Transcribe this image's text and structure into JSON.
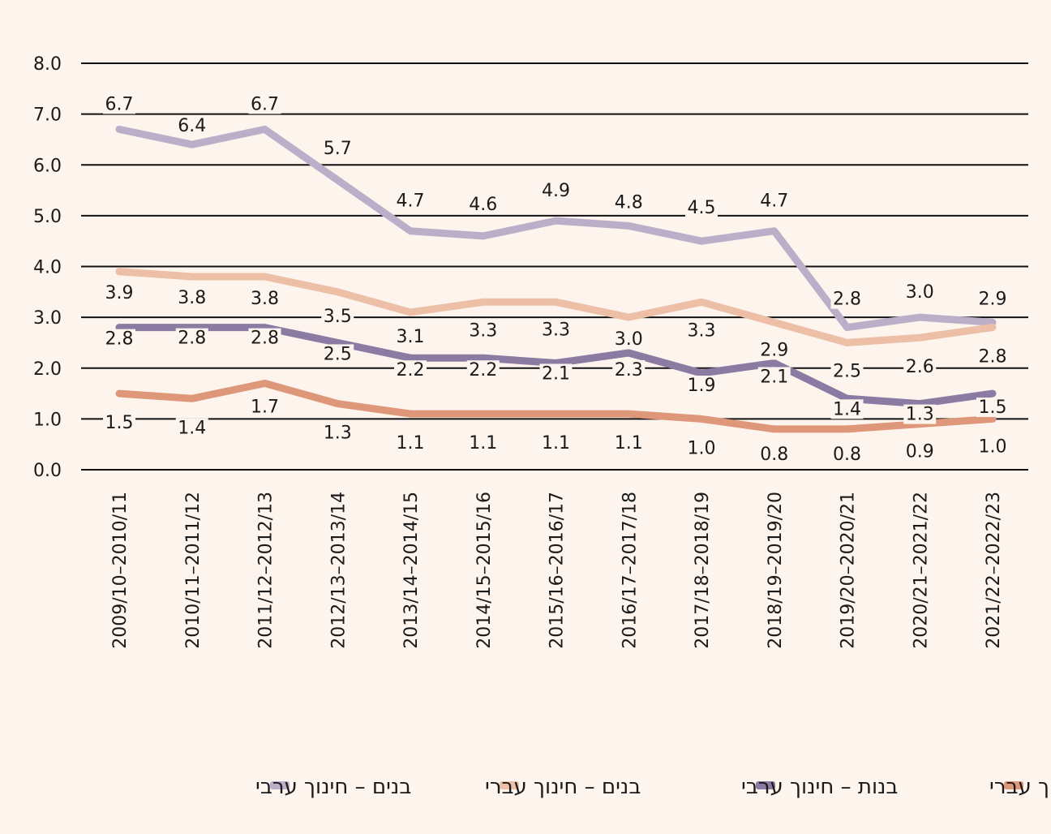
{
  "chart_data": {
    "type": "line",
    "title": "",
    "xlabel": "",
    "ylabel": "",
    "ylim": [
      0,
      8
    ],
    "yticks": [
      "0.0",
      "1.0",
      "2.0",
      "3.0",
      "4.0",
      "5.0",
      "6.0",
      "7.0",
      "8.0"
    ],
    "grid": true,
    "legend_position": "bottom",
    "categories": [
      "2009/10–2010/11",
      "2010/11–2011/12",
      "2011/12–2012/13",
      "2012/13–2013/14",
      "2013/14–2014/15",
      "2014/15–2015/16",
      "2015/16–2016/17",
      "2016/17–2017/18",
      "2017/18–2018/19",
      "2018/19–2019/20",
      "2019/20–2020/21",
      "2020/21–2021/22",
      "2021/22–2022/23"
    ],
    "series": [
      {
        "name": "בנים – חינוך ערבי",
        "color": "#bbaec9",
        "values": [
          6.7,
          6.4,
          6.7,
          5.7,
          4.7,
          4.6,
          4.9,
          4.8,
          4.5,
          4.7,
          2.8,
          3.0,
          2.9
        ],
        "labels": [
          "6.7",
          "6.4",
          "6.7",
          "5.7",
          "4.7",
          "4.6",
          "4.9",
          "4.8",
          "4.5",
          "4.7",
          "2.8",
          "3.0",
          "2.9"
        ]
      },
      {
        "name": "בנים – חינוך עברי",
        "color": "#edbfa6",
        "values": [
          3.9,
          3.8,
          3.8,
          3.5,
          3.1,
          3.3,
          3.3,
          3.0,
          3.3,
          2.9,
          2.5,
          2.6,
          2.8
        ],
        "labels": [
          "3.9",
          "3.8",
          "3.8",
          "3.5",
          "3.1",
          "3.3",
          "3.3",
          "3.0",
          "3.3",
          "2.9",
          "2.5",
          "2.6",
          "2.8"
        ]
      },
      {
        "name": "בנות – חינוך ערבי",
        "color": "#8b7ba3",
        "values": [
          2.8,
          2.8,
          2.8,
          2.5,
          2.2,
          2.2,
          2.1,
          2.3,
          1.9,
          2.1,
          1.4,
          1.3,
          1.5
        ],
        "labels": [
          "2.8",
          "2.8",
          "2.8",
          "2.5",
          "2.2",
          "2.2",
          "2.1",
          "2.3",
          "1.9",
          "2.1",
          "1.4",
          "1.3",
          "1.5"
        ]
      },
      {
        "name": "בנות – חינוך עברי",
        "color": "#df977a",
        "values": [
          1.5,
          1.4,
          1.7,
          1.3,
          1.1,
          1.1,
          1.1,
          1.1,
          1.0,
          0.8,
          0.8,
          0.9,
          1.0
        ],
        "labels": [
          "1.5",
          "1.4",
          "1.7",
          "1.3",
          "1.1",
          "1.1",
          "1.1",
          "1.1",
          "1.0",
          "0.8",
          "0.8",
          "0.9",
          "1.0"
        ]
      }
    ],
    "legend_order": [
      3,
      2,
      1,
      0
    ]
  }
}
